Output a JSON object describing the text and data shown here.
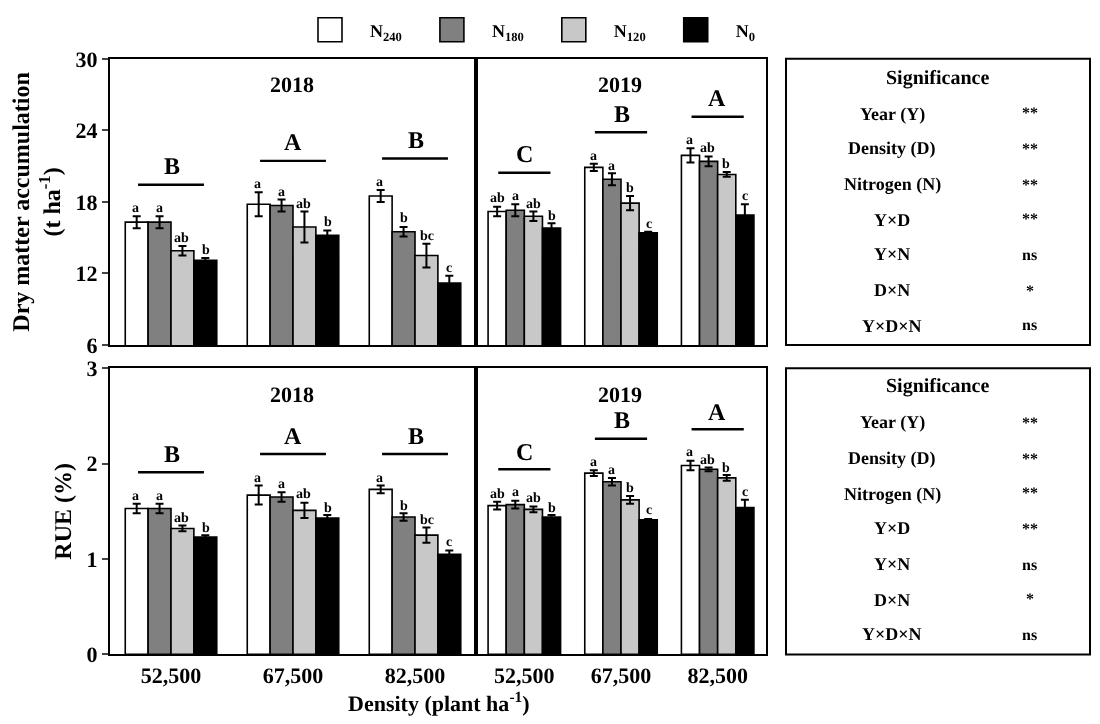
{
  "chart_data": [
    {
      "type": "bar",
      "title": "2018",
      "ylabel": "Dry matter accumulation\n(t ha$^{-1}$)",
      "categories": [
        "52,500",
        "67,500",
        "82,500"
      ],
      "ylim": [
        6,
        30
      ],
      "yticks": [
        6,
        12,
        18,
        24,
        30
      ],
      "grid": false,
      "legend": "top right",
      "tick_labels": "y",
      "series": [
        {
          "name": "N$_{240}$",
          "color": "#ffffff",
          "values": [
            16.3,
            17.8,
            18.5
          ],
          "errors": [
            0.5,
            1.0,
            0.5
          ],
          "value_labels": [
            "a",
            "a",
            "a"
          ]
        },
        {
          "name": "N$_{180}$",
          "color": "#808080",
          "values": [
            16.3,
            17.7,
            15.5
          ],
          "errors": [
            0.5,
            0.5,
            0.4
          ],
          "value_labels": [
            "a",
            "a",
            "b"
          ]
        },
        {
          "name": "N$_{120}$",
          "color": "#c8c8c8",
          "values": [
            13.9,
            15.9,
            13.5
          ],
          "errors": [
            0.4,
            1.3,
            1.0
          ],
          "value_labels": [
            "ab",
            "ab",
            "bc"
          ]
        },
        {
          "name": "N$_{0}$",
          "color": "#000000",
          "values": [
            13.1,
            15.2,
            11.2
          ],
          "errors": [
            0.2,
            0.4,
            0.6
          ],
          "value_labels": [
            "b",
            "b",
            "c"
          ]
        }
      ],
      "annotations": [
        "B",
        "A",
        "B"
      ]
    },
    {
      "type": "bar",
      "title": "2019",
      "categories": [
        "52,500",
        "67,500",
        "82,500"
      ],
      "ylim": [
        6,
        30
      ],
      "yticks": [
        6,
        12,
        18,
        24,
        30
      ],
      "grid": false,
      "tick_labels": false,
      "series": [
        {
          "color": "#ffffff",
          "values": [
            17.2,
            20.9,
            21.9
          ],
          "errors": [
            0.4,
            0.3,
            0.6
          ],
          "value_labels": [
            "ab",
            "a",
            "a"
          ]
        },
        {
          "color": "#808080",
          "values": [
            17.3,
            19.9,
            21.4
          ],
          "errors": [
            0.5,
            0.5,
            0.4
          ],
          "value_labels": [
            "a",
            "a",
            "ab"
          ]
        },
        {
          "color": "#c8c8c8",
          "values": [
            16.8,
            17.9,
            20.3
          ],
          "errors": [
            0.4,
            0.6,
            0.2
          ],
          "value_labels": [
            "ab",
            "b",
            "b"
          ]
        },
        {
          "color": "#000000",
          "values": [
            15.8,
            15.4,
            16.9
          ],
          "errors": [
            0.4,
            0.1,
            0.9
          ],
          "value_labels": [
            "b",
            "c",
            "c"
          ]
        }
      ],
      "annotations": [
        "C",
        "B",
        "A"
      ]
    },
    {
      "type": "other",
      "title": "Significance",
      "categories": [
        "Year (Y)",
        "Density (D)",
        "Nitrogen (N)",
        "Y×D",
        "Y×N",
        "D×N",
        "Y×D×N"
      ],
      "value_labels": [
        "**",
        "**",
        "**",
        "**",
        "ns",
        "*",
        "ns"
      ]
    },
    {
      "type": "bar",
      "title": "2018",
      "ylabel": "RUE (%)",
      "xlabel": "Density (plant ha$^{-1}$)",
      "categories": [
        "52,500",
        "67,500",
        "82,500"
      ],
      "ylim": [
        0,
        3
      ],
      "yticks": [
        0,
        1,
        2,
        3
      ],
      "grid": false,
      "series": [
        {
          "color": "#ffffff",
          "values": [
            1.53,
            1.67,
            1.73
          ],
          "errors": [
            0.05,
            0.1,
            0.04
          ],
          "value_labels": [
            "a",
            "a",
            "a"
          ]
        },
        {
          "color": "#808080",
          "values": [
            1.53,
            1.65,
            1.44
          ],
          "errors": [
            0.05,
            0.05,
            0.04
          ],
          "value_labels": [
            "a",
            "a",
            "b"
          ]
        },
        {
          "color": "#c8c8c8",
          "values": [
            1.32,
            1.51,
            1.25
          ],
          "errors": [
            0.03,
            0.08,
            0.08
          ],
          "value_labels": [
            "ab",
            "ab",
            "bc"
          ]
        },
        {
          "color": "#000000",
          "values": [
            1.23,
            1.43,
            1.05
          ],
          "errors": [
            0.02,
            0.03,
            0.04
          ],
          "value_labels": [
            "b",
            "b",
            "c"
          ]
        }
      ],
      "annotations": [
        "B",
        "A",
        "B"
      ]
    },
    {
      "type": "bar",
      "title": "2019",
      "categories": [
        "52,500",
        "67,500",
        "82,500"
      ],
      "ylim": [
        0,
        3
      ],
      "yticks": [
        0,
        1,
        2,
        3
      ],
      "grid": false,
      "tick_labels": "x",
      "series": [
        {
          "color": "#ffffff",
          "values": [
            1.56,
            1.9,
            1.98
          ],
          "errors": [
            0.04,
            0.03,
            0.05
          ],
          "value_labels": [
            "ab",
            "a",
            "a"
          ]
        },
        {
          "color": "#808080",
          "values": [
            1.57,
            1.81,
            1.94
          ],
          "errors": [
            0.04,
            0.04,
            0.02
          ],
          "value_labels": [
            "a",
            "a",
            "ab"
          ]
        },
        {
          "color": "#c8c8c8",
          "values": [
            1.52,
            1.62,
            1.85
          ],
          "errors": [
            0.03,
            0.04,
            0.03
          ],
          "value_labels": [
            "ab",
            "b",
            "b"
          ]
        },
        {
          "color": "#000000",
          "values": [
            1.44,
            1.41,
            1.54
          ],
          "errors": [
            0.02,
            0.01,
            0.08
          ],
          "value_labels": [
            "b",
            "c",
            "c"
          ]
        }
      ],
      "annotations": [
        "C",
        "B",
        "A"
      ]
    },
    {
      "type": "other",
      "title": "Significance",
      "categories": [
        "Year (Y)",
        "Density (D)",
        "Nitrogen (N)",
        "Y×D",
        "Y×N",
        "D×N",
        "Y×D×N"
      ],
      "value_labels": [
        "**",
        "**",
        "**",
        "**",
        "ns",
        "*",
        "ns"
      ]
    }
  ]
}
